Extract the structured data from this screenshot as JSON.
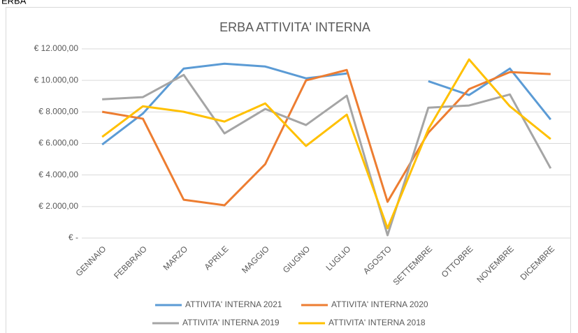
{
  "header": "ERBA",
  "chart_data": {
    "type": "line",
    "title": "ERBA ATTIVITA' INTERNA",
    "categories": [
      "GENNAIO",
      "FEBBRAIO",
      "MARZO",
      "APRILE",
      "MAGGIO",
      "GIUGNO",
      "LUGLIO",
      "AGOSTO",
      "SETTEMBRE",
      "OTTOBRE",
      "NOVEMBRE",
      "DICEMBRE"
    ],
    "series": [
      {
        "name": "ATTIVITA' INTERNA 2021",
        "color": "#5b9bd5",
        "values": [
          5930,
          7900,
          10750,
          11060,
          10880,
          10130,
          10440,
          null,
          9950,
          9070,
          10750,
          7520
        ]
      },
      {
        "name": "ATTIVITA' INTERNA 2020",
        "color": "#ed7d31",
        "values": [
          8010,
          7570,
          2430,
          2080,
          4690,
          10000,
          10660,
          2300,
          6680,
          9450,
          10530,
          10400
        ]
      },
      {
        "name": "ATTIVITA' INTERNA 2019",
        "color": "#a5a5a5",
        "values": [
          8800,
          8940,
          10350,
          6640,
          8190,
          7170,
          9030,
          180,
          8270,
          8410,
          9110,
          4420
        ]
      },
      {
        "name": "ATTIVITA' INTERNA 2018",
        "color": "#ffc000",
        "values": [
          6420,
          8360,
          8010,
          7390,
          8540,
          5840,
          7830,
          620,
          6900,
          11330,
          8360,
          6280
        ]
      }
    ],
    "ylim": [
      0,
      12000
    ],
    "yticks": [
      {
        "value": 0,
        "label": "€ -"
      },
      {
        "value": 2000,
        "label": "€ 2.000,00"
      },
      {
        "value": 4000,
        "label": "€ 4.000,00"
      },
      {
        "value": 6000,
        "label": "€ 6.000,00"
      },
      {
        "value": 8000,
        "label": "€ 8.000,00"
      },
      {
        "value": 10000,
        "label": "€ 10.000,00"
      },
      {
        "value": 12000,
        "label": "€ 12.000,00"
      }
    ],
    "grid": true,
    "legend": "bottom"
  }
}
